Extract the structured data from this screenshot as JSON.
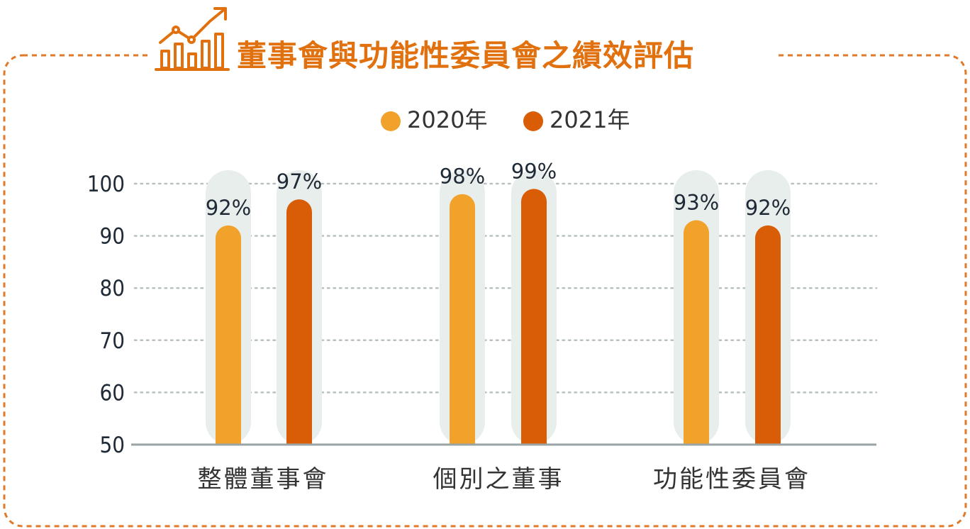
{
  "chart_data": {
    "type": "bar",
    "title": "董事會與功能性委員會之績效評估",
    "categories": [
      "整體董事會",
      "個別之董事",
      "功能性委員會"
    ],
    "series": [
      {
        "name": "2020年",
        "values": [
          92,
          98,
          93
        ],
        "labels": [
          "92%",
          "98%",
          "93%"
        ],
        "color": "#f0a22b"
      },
      {
        "name": "2021年",
        "values": [
          97,
          99,
          92
        ],
        "labels": [
          "97%",
          "99%",
          "92%"
        ],
        "color": "#d95c07"
      }
    ],
    "ylim": [
      50,
      100
    ],
    "yticks": [
      "50",
      "60",
      "70",
      "80",
      "90",
      "100"
    ],
    "grid": true,
    "legend_position": "top-center"
  },
  "colors": {
    "frame_border": "#e07a2a",
    "title_text": "#e0710e",
    "track": "#e8eeec",
    "grid": "#b8c0c2",
    "axis_text": "#1f2a36",
    "category_text": "#333333",
    "title_icon": "chart-rising-arrow-icon"
  }
}
